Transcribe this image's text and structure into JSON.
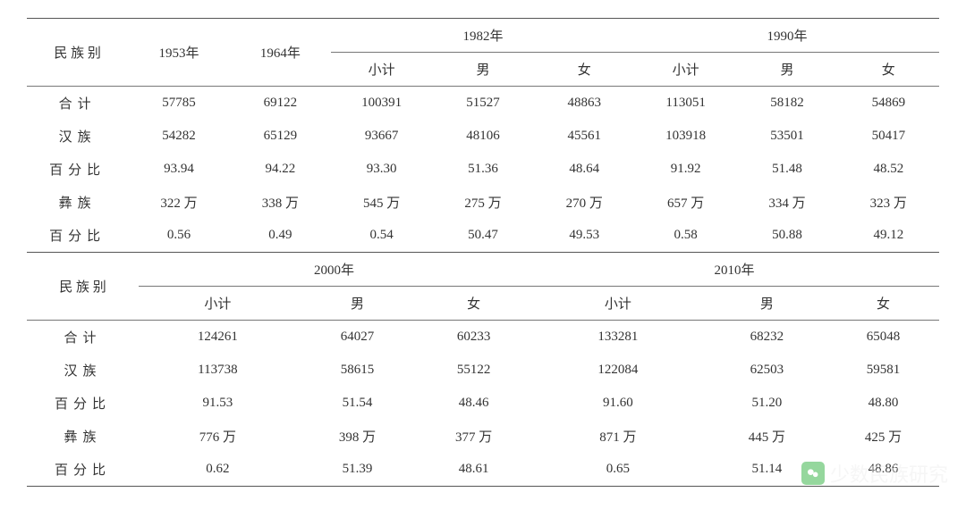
{
  "table1": {
    "header": {
      "ethnic": "民 族 别",
      "y1953": "1953年",
      "y1964": "1964年",
      "y1982": "1982年",
      "y1990": "1990年",
      "subtotal": "小计",
      "male": "男",
      "female": "女"
    },
    "rows": [
      {
        "label": "合计",
        "c": [
          "57785",
          "69122",
          "100391",
          "51527",
          "48863",
          "113051",
          "58182",
          "54869"
        ]
      },
      {
        "label": "汉族",
        "c": [
          "54282",
          "65129",
          "93667",
          "48106",
          "45561",
          "103918",
          "53501",
          "50417"
        ]
      },
      {
        "label": "百分比",
        "c": [
          "93.94",
          "94.22",
          "93.30",
          "51.36",
          "48.64",
          "91.92",
          "51.48",
          "48.52"
        ]
      },
      {
        "label": "彝族",
        "c": [
          "322 万",
          "338 万",
          "545 万",
          "275 万",
          "270 万",
          "657 万",
          "334 万",
          "323 万"
        ]
      },
      {
        "label": "百分比",
        "c": [
          "0.56",
          "0.49",
          "0.54",
          "50.47",
          "49.53",
          "0.58",
          "50.88",
          "49.12"
        ]
      }
    ]
  },
  "table2": {
    "header": {
      "ethnic": "民 族 别",
      "y2000": "2000年",
      "y2010": "2010年",
      "subtotal": "小计",
      "male": "男",
      "female": "女"
    },
    "rows": [
      {
        "label": "合计",
        "c": [
          "124261",
          "64027",
          "60233",
          "133281",
          "68232",
          "65048"
        ]
      },
      {
        "label": "汉族",
        "c": [
          "113738",
          "58615",
          "55122",
          "122084",
          "62503",
          "59581"
        ]
      },
      {
        "label": "百分比",
        "c": [
          "91.53",
          "51.54",
          "48.46",
          "91.60",
          "51.20",
          "48.80"
        ]
      },
      {
        "label": "彝族",
        "c": [
          "776 万",
          "398 万",
          "377 万",
          "871 万",
          "445 万",
          "425 万"
        ]
      },
      {
        "label": "百分比",
        "c": [
          "0.62",
          "51.39",
          "48.61",
          "0.65",
          "51.14",
          "48.86"
        ]
      }
    ]
  },
  "watermark": {
    "text": "少数民族研究"
  },
  "style": {
    "font_family": "SimSun",
    "font_size_pt": 11,
    "text_color": "#333333",
    "border_color_heavy": "#555555",
    "border_color_thin": "#777777",
    "background": "#ffffff",
    "watermark_color": "#eeeeee",
    "watermark_icon_bg": "#2aae39"
  }
}
